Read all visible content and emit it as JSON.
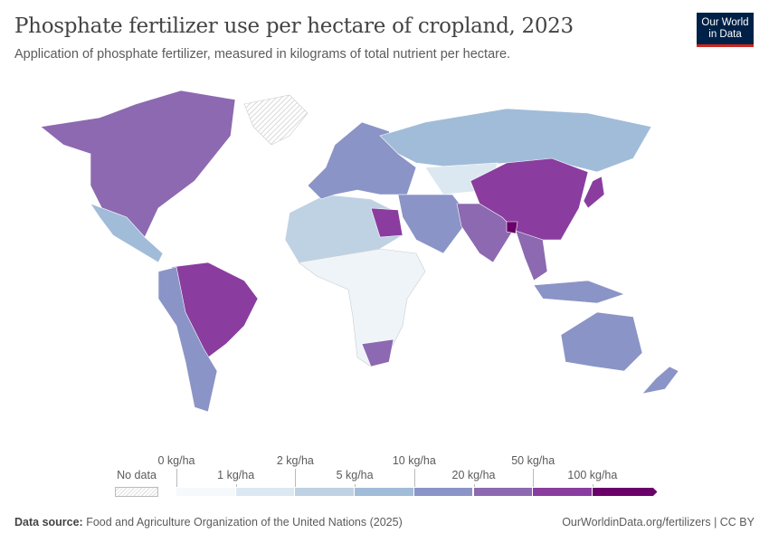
{
  "header": {
    "title": "Phosphate fertilizer use per hectare of cropland, 2023",
    "subtitle": "Application of phosphate fertilizer, measured in kilograms of total nutrient per hectare."
  },
  "logo": {
    "line1": "Our World",
    "line2": "in Data"
  },
  "legend": {
    "no_data": "No data",
    "ticks": [
      "0 kg/ha",
      "1 kg/ha",
      "2 kg/ha",
      "5 kg/ha",
      "10 kg/ha",
      "20 kg/ha",
      "50 kg/ha",
      "100 kg/ha"
    ],
    "colors": [
      "#f5f9fb",
      "#dce8f1",
      "#bfd2e4",
      "#a1bcd9",
      "#8b94c6",
      "#8c69b0",
      "#8a3d9f",
      "#6a0069"
    ]
  },
  "footer": {
    "source_label": "Data source:",
    "source": "Food and Agriculture Organization of the United Nations (2025)",
    "link": "OurWorldinData.org/fertilizers | CC BY"
  }
}
